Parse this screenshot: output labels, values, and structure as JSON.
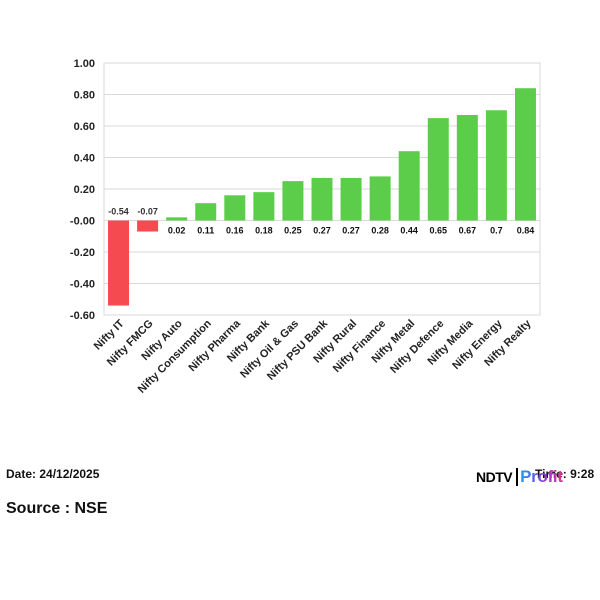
{
  "chart_data": {
    "type": "bar",
    "categories": [
      "Nifty IT",
      "Nifty FMCG",
      "Nifty Auto",
      "Nifty Consumption",
      "Nifty Pharma",
      "Nifty Bank",
      "Nifty Oil & Gas",
      "Nifty PSU Bank",
      "Nifty Rural",
      "Nifty Finance",
      "Nifty Metal",
      "Nifty Defence",
      "Nifty Media",
      "Nifty Energy",
      "Nifty Realty"
    ],
    "values": [
      -0.54,
      -0.07,
      0.02,
      0.11,
      0.16,
      0.18,
      0.25,
      0.27,
      0.27,
      0.28,
      0.44,
      0.65,
      0.67,
      0.7,
      0.84
    ],
    "value_labels": [
      "-0.54",
      "-0.07",
      "0.02",
      "0.11",
      "0.16",
      "0.18",
      "0.25",
      "0.27",
      "0.27",
      "0.28",
      "0.44",
      "0.65",
      "0.67",
      "0.7",
      "0.84"
    ],
    "yticks": [
      "1.00",
      "0.80",
      "0.60",
      "0.40",
      "0.20",
      "-0.00",
      "-0.20",
      "-0.40",
      "-0.60"
    ],
    "ylim": [
      -0.6,
      1.0
    ],
    "grid": true,
    "colors": {
      "positive": "#5ccd4a",
      "negative": "#f54a4f"
    }
  },
  "footer": {
    "date": "Date: 24/12/2025",
    "time": "Time: 9:28",
    "source": "Source : NSE"
  },
  "logo": {
    "brand": "NDTV",
    "product": "Profit"
  }
}
